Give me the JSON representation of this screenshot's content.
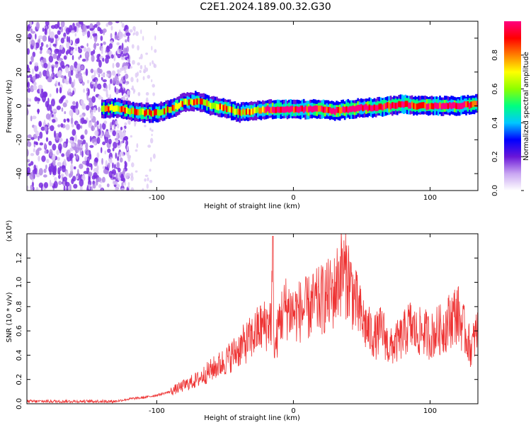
{
  "title": "C2E1.2024.189.00.32.G30",
  "colors": {
    "spectrogram_speckle": "#7a2ee0",
    "snr_line": "#ee3333",
    "axis": "#000000"
  },
  "colorbar": {
    "label": "Normalized spectral amplitude",
    "ticks": [
      "0.0",
      "0.2",
      "0.4",
      "0.6",
      "0.8"
    ],
    "range": [
      0.0,
      1.0
    ],
    "colormap": [
      "#ffffff",
      "#c9a6f2",
      "#6a16d8",
      "#0000ff",
      "#00c8ff",
      "#00ff80",
      "#8cff00",
      "#ffff00",
      "#ff8000",
      "#ff0000",
      "#ff0080"
    ]
  },
  "chart_data": [
    {
      "type": "heatmap",
      "xlabel": "Height of straight line (km)",
      "ylabel": "Frequency (Hz)",
      "xlim": [
        -195,
        135
      ],
      "ylim": [
        -50,
        50
      ],
      "xticks": [
        -100,
        0,
        100
      ],
      "xtick_labels": [
        "-100",
        "0",
        "100"
      ],
      "yticks": [
        -40,
        -20,
        0,
        20,
        40
      ],
      "ytick_labels": [
        "-40",
        "-20",
        "0",
        "20",
        "40"
      ],
      "ridge": {
        "x": [
          -140,
          -130,
          -120,
          -110,
          -100,
          -90,
          -80,
          -70,
          -60,
          -50,
          -40,
          -30,
          -20,
          -10,
          0,
          10,
          20,
          30,
          40,
          50,
          60,
          70,
          80,
          90,
          100,
          110,
          120,
          135
        ],
        "y": [
          -2,
          -1,
          -3,
          -4,
          -4,
          -2,
          2,
          3,
          0,
          -1,
          -4,
          -3,
          -2,
          -2,
          -2,
          -2,
          -2,
          -3,
          -2,
          -1,
          -1,
          0,
          1,
          0,
          0,
          0,
          0,
          1
        ]
      },
      "noise_region_x": [
        -195,
        -130
      ]
    },
    {
      "type": "line",
      "xlabel": "Height of straight line (km)",
      "ylabel": "SNR (10 * v/v)",
      "y_multiplier": "(x10⁴)",
      "xlim": [
        -195,
        135
      ],
      "ylim": [
        0,
        1.4
      ],
      "xticks": [
        -100,
        0,
        100
      ],
      "xtick_labels": [
        "-100",
        "0",
        "100"
      ],
      "yticks": [
        0.0,
        0.2,
        0.4,
        0.6,
        0.8,
        1.0,
        1.2
      ],
      "ytick_labels": [
        "0.0",
        "0.2",
        "0.4",
        "0.6",
        "0.8",
        "1.0",
        "1.2"
      ],
      "series": [
        {
          "x": [
            -195,
            -180,
            -160,
            -140,
            -130,
            -120,
            -110,
            -100,
            -90,
            -80,
            -70,
            -60,
            -50,
            -40,
            -30,
            -25,
            -20,
            -16,
            -15,
            -14,
            -10,
            -5,
            0,
            10,
            20,
            30,
            35,
            40,
            45,
            50,
            55,
            60,
            65,
            70,
            75,
            80,
            85,
            90,
            95,
            100,
            105,
            110,
            115,
            120,
            125,
            130,
            135
          ],
          "y": [
            0.02,
            0.02,
            0.01,
            0.02,
            0.02,
            0.04,
            0.05,
            0.07,
            0.1,
            0.15,
            0.2,
            0.28,
            0.35,
            0.45,
            0.55,
            0.62,
            0.65,
            0.7,
            1.4,
            0.4,
            0.7,
            0.8,
            0.75,
            0.78,
            0.85,
            0.92,
            1.1,
            1.05,
            0.85,
            0.7,
            0.6,
            0.55,
            0.62,
            0.45,
            0.5,
            0.55,
            0.65,
            0.58,
            0.6,
            0.55,
            0.6,
            0.62,
            0.7,
            0.75,
            0.6,
            0.45,
            0.62
          ]
        }
      ]
    }
  ]
}
